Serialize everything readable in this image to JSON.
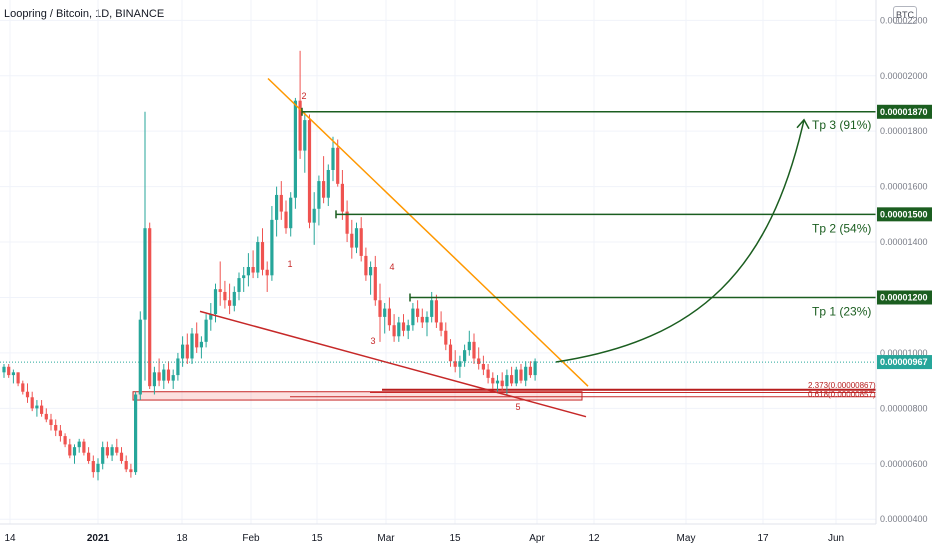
{
  "header": {
    "title": "Loopring / Bitcoin, 1D, BINANCE",
    "currency_button": "BTC"
  },
  "colors": {
    "up": "#26a69a",
    "down": "#ef5350",
    "target": "#1b5e20",
    "resistance": "#ff9800",
    "support": "#c62828",
    "grid": "#f0f3fa"
  },
  "chart_data": {
    "type": "candlestick",
    "x_labels": [
      "14",
      "2021",
      "18",
      "Feb",
      "15",
      "Mar",
      "15",
      "Apr",
      "12",
      "May",
      "17",
      "Jun"
    ],
    "y_ticks": [
      "0.00002200",
      "0.00002000",
      "0.00001800",
      "0.00001600",
      "0.00001400",
      "0.00001200",
      "0.00001000",
      "0.00000800",
      "0.00000600",
      "0.00000400"
    ],
    "y_tick_values": [
      2.2e-05,
      2e-05,
      1.8e-05,
      1.6e-05,
      1.4e-05,
      1.2e-05,
      1e-05,
      8e-06,
      6e-06,
      4e-06
    ],
    "ylim": [
      3.9e-06,
      2.23e-05
    ],
    "current_price": "0.00000967",
    "targets": [
      {
        "label": "Tp 3 (91%)",
        "price": "0.00001870",
        "value": 1.87e-05
      },
      {
        "label": "Tp 2 (54%)",
        "price": "0.00001500",
        "value": 1.5e-05
      },
      {
        "label": "Tp 1 (23%)",
        "price": "0.00001200",
        "value": 1.2e-05
      }
    ],
    "fib_labels": [
      "2.373(0.00000867)",
      "0.618(0.00000857)"
    ],
    "wave_labels": [
      "2",
      "1",
      "4",
      "3",
      "5"
    ],
    "candles": [
      [
        9.3e-06,
        9.6e-06,
        9.1e-06,
        9.5e-06
      ],
      [
        9.5e-06,
        9.6e-06,
        9.1e-06,
        9.2e-06
      ],
      [
        9.2e-06,
        9.4e-06,
        8.9e-06,
        9.3e-06
      ],
      [
        9.3e-06,
        9.3e-06,
        8.8e-06,
        8.9e-06
      ],
      [
        8.9e-06,
        9e-06,
        8.5e-06,
        8.6e-06
      ],
      [
        8.6e-06,
        8.9e-06,
        8.2e-06,
        8.4e-06
      ],
      [
        8.4e-06,
        8.6e-06,
        7.9e-06,
        8e-06
      ],
      [
        8e-06,
        8.3e-06,
        7.7e-06,
        8.1e-06
      ],
      [
        8.1e-06,
        8.3e-06,
        7.7e-06,
        7.8e-06
      ],
      [
        7.8e-06,
        8e-06,
        7.5e-06,
        7.6e-06
      ],
      [
        7.6e-06,
        7.8e-06,
        7.2e-06,
        7.4e-06
      ],
      [
        7.4e-06,
        7.6e-06,
        7e-06,
        7.2e-06
      ],
      [
        7.2e-06,
        7.4e-06,
        6.8e-06,
        7e-06
      ],
      [
        7e-06,
        7.1e-06,
        6.6e-06,
        6.7e-06
      ],
      [
        6.7e-06,
        6.9e-06,
        6.2e-06,
        6.3e-06
      ],
      [
        6.3e-06,
        6.7e-06,
        6e-06,
        6.6e-06
      ],
      [
        6.6e-06,
        6.9e-06,
        6.4e-06,
        6.8e-06
      ],
      [
        6.8e-06,
        6.9e-06,
        6.3e-06,
        6.4e-06
      ],
      [
        6.4e-06,
        6.6e-06,
        6e-06,
        6.1e-06
      ],
      [
        6.1e-06,
        6.3e-06,
        5.5e-06,
        5.7e-06
      ],
      [
        5.7e-06,
        6.2e-06,
        5.4e-06,
        6e-06
      ],
      [
        6e-06,
        6.8e-06,
        5.8e-06,
        6.6e-06
      ],
      [
        6.6e-06,
        6.8e-06,
        6.2e-06,
        6.3e-06
      ],
      [
        6.3e-06,
        6.7e-06,
        6.1e-06,
        6.6e-06
      ],
      [
        6.6e-06,
        6.9e-06,
        6.3e-06,
        6.4e-06
      ],
      [
        6.4e-06,
        6.6e-06,
        6e-06,
        6.1e-06
      ],
      [
        6.1e-06,
        6.3e-06,
        5.7e-06,
        5.8e-06
      ],
      [
        5.8e-06,
        6e-06,
        5.5e-06,
        5.7e-06
      ],
      [
        5.7e-06,
        8.6e-06,
        5.6e-06,
        8.5e-06
      ],
      [
        8.5e-06,
        1.15e-05,
        8.3e-06,
        1.12e-05
      ],
      [
        1.12e-05,
        1.87e-05,
        9e-06,
        1.45e-05
      ],
      [
        1.45e-05,
        1.47e-05,
        8.7e-06,
        8.8e-06
      ],
      [
        8.8e-06,
        9.5e-06,
        8.5e-06,
        9.3e-06
      ],
      [
        9.3e-06,
        9.8e-06,
        8.8e-06,
        9e-06
      ],
      [
        9e-06,
        9.6e-06,
        8.7e-06,
        9.4e-06
      ],
      [
        9.4e-06,
        9.7e-06,
        8.9e-06,
        9e-06
      ],
      [
        9e-06,
        9.4e-06,
        8.7e-06,
        9.2e-06
      ],
      [
        9.2e-06,
        1e-05,
        9e-06,
        9.8e-06
      ],
      [
        9.8e-06,
        1.06e-05,
        9.5e-06,
        1.03e-05
      ],
      [
        1.03e-05,
        1.07e-05,
        9.6e-06,
        9.8e-06
      ],
      [
        9.8e-06,
        1.09e-05,
        9.6e-06,
        1.07e-05
      ],
      [
        1.07e-05,
        1.11e-05,
        1e-05,
        1.02e-05
      ],
      [
        1.02e-05,
        1.06e-05,
        9.8e-06,
        1.04e-05
      ],
      [
        1.04e-05,
        1.14e-05,
        1.02e-05,
        1.12e-05
      ],
      [
        1.12e-05,
        1.18e-05,
        1.08e-05,
        1.14e-05
      ],
      [
        1.14e-05,
        1.25e-05,
        1.11e-05,
        1.23e-05
      ],
      [
        1.23e-05,
        1.33e-05,
        1.17e-05,
        1.22e-05
      ],
      [
        1.22e-05,
        1.26e-05,
        1.16e-05,
        1.19e-05
      ],
      [
        1.19e-05,
        1.25e-05,
        1.14e-05,
        1.17e-05
      ],
      [
        1.17e-05,
        1.24e-05,
        1.15e-05,
        1.22e-05
      ],
      [
        1.22e-05,
        1.29e-05,
        1.19e-05,
        1.27e-05
      ],
      [
        1.27e-05,
        1.31e-05,
        1.22e-05,
        1.28e-05
      ],
      [
        1.28e-05,
        1.36e-05,
        1.24e-05,
        1.31e-05
      ],
      [
        1.31e-05,
        1.37e-05,
        1.27e-05,
        1.29e-05
      ],
      [
        1.29e-05,
        1.42e-05,
        1.27e-05,
        1.4e-05
      ],
      [
        1.4e-05,
        1.45e-05,
        1.28e-05,
        1.3e-05
      ],
      [
        1.3e-05,
        1.33e-05,
        1.22e-05,
        1.28e-05
      ],
      [
        1.28e-05,
        1.53e-05,
        1.26e-05,
        1.48e-05
      ],
      [
        1.48e-05,
        1.6e-05,
        1.42e-05,
        1.57e-05
      ],
      [
        1.57e-05,
        1.62e-05,
        1.48e-05,
        1.51e-05
      ],
      [
        1.51e-05,
        1.55e-05,
        1.43e-05,
        1.45e-05
      ],
      [
        1.45e-05,
        1.58e-05,
        1.42e-05,
        1.56e-05
      ],
      [
        1.56e-05,
        1.92e-05,
        1.52e-05,
        1.91e-05
      ],
      [
        1.91e-05,
        2.09e-05,
        1.7e-05,
        1.73e-05
      ],
      [
        1.73e-05,
        1.87e-05,
        1.65e-05,
        1.84e-05
      ],
      [
        1.84e-05,
        1.86e-05,
        1.45e-05,
        1.47e-05
      ],
      [
        1.47e-05,
        1.58e-05,
        1.39e-05,
        1.52e-05
      ],
      [
        1.52e-05,
        1.64e-05,
        1.46e-05,
        1.62e-05
      ],
      [
        1.62e-05,
        1.71e-05,
        1.54e-05,
        1.56e-05
      ],
      [
        1.56e-05,
        1.68e-05,
        1.53e-05,
        1.66e-05
      ],
      [
        1.66e-05,
        1.78e-05,
        1.62e-05,
        1.74e-05
      ],
      [
        1.74e-05,
        1.77e-05,
        1.6e-05,
        1.61e-05
      ],
      [
        1.61e-05,
        1.66e-05,
        1.48e-05,
        1.51e-05
      ],
      [
        1.51e-05,
        1.55e-05,
        1.4e-05,
        1.43e-05
      ],
      [
        1.43e-05,
        1.48e-05,
        1.34e-05,
        1.38e-05
      ],
      [
        1.38e-05,
        1.47e-05,
        1.36e-05,
        1.45e-05
      ],
      [
        1.45e-05,
        1.49e-05,
        1.33e-05,
        1.35e-05
      ],
      [
        1.35e-05,
        1.38e-05,
        1.26e-05,
        1.28e-05
      ],
      [
        1.28e-05,
        1.33e-05,
        1.21e-05,
        1.31e-05
      ],
      [
        1.31e-05,
        1.35e-05,
        1.17e-05,
        1.19e-05
      ],
      [
        1.19e-05,
        1.25e-05,
        1.04e-05,
        1.13e-05
      ],
      [
        1.13e-05,
        1.18e-05,
        1.07e-05,
        1.16e-05
      ],
      [
        1.16e-05,
        1.2e-05,
        1.08e-05,
        1.1e-05
      ],
      [
        1.1e-05,
        1.14e-05,
        1.04e-05,
        1.06e-05
      ],
      [
        1.06e-05,
        1.13e-05,
        1.04e-05,
        1.11e-05
      ],
      [
        1.11e-05,
        1.14e-05,
        1.06e-05,
        1.08e-05
      ],
      [
        1.08e-05,
        1.12e-05,
        1.05e-05,
        1.1e-05
      ],
      [
        1.1e-05,
        1.18e-05,
        1.08e-05,
        1.16e-05
      ],
      [
        1.16e-05,
        1.19e-05,
        1.11e-05,
        1.13e-05
      ],
      [
        1.13e-05,
        1.16e-05,
        1.09e-05,
        1.11e-05
      ],
      [
        1.11e-05,
        1.15e-05,
        1.06e-05,
        1.13e-05
      ],
      [
        1.13e-05,
        1.22e-05,
        1.11e-05,
        1.19e-05
      ],
      [
        1.19e-05,
        1.21e-05,
        1.09e-05,
        1.11e-05
      ],
      [
        1.11e-05,
        1.15e-05,
        1.06e-05,
        1.08e-05
      ],
      [
        1.08e-05,
        1.11e-05,
        1.01e-05,
        1.03e-05
      ],
      [
        1.03e-05,
        1.05e-05,
        9.5e-06,
        9.7e-06
      ],
      [
        9.7e-06,
        1.01e-05,
        9.3e-06,
        9.5e-06
      ],
      [
        9.5e-06,
        9.9e-06,
        9.1e-06,
        9.7e-06
      ],
      [
        9.7e-06,
        1.03e-05,
        9.5e-06,
        1.01e-05
      ],
      [
        1.01e-05,
        1.08e-05,
        9.9e-06,
        1.04e-05
      ],
      [
        1.04e-05,
        1.07e-05,
        9.6e-06,
        9.8e-06
      ],
      [
        9.8e-06,
        1.02e-05,
        9.4e-06,
        9.6e-06
      ],
      [
        9.6e-06,
        9.9e-06,
        9.2e-06,
        9.4e-06
      ],
      [
        9.4e-06,
        9.6e-06,
        8.9e-06,
        9.1e-06
      ],
      [
        9.1e-06,
        9.3e-06,
        8.7e-06,
        8.9e-06
      ],
      [
        8.9e-06,
        9.2e-06,
        8.6e-06,
        9e-06
      ],
      [
        9e-06,
        9.3e-06,
        8.6e-06,
        8.8e-06
      ],
      [
        8.8e-06,
        9.4e-06,
        8.5e-06,
        9.2e-06
      ],
      [
        9.2e-06,
        9.5e-06,
        8.8e-06,
        8.9e-06
      ],
      [
        8.9e-06,
        9.5e-06,
        8.8e-06,
        9.4e-06
      ],
      [
        9.4e-06,
        9.6e-06,
        8.9e-06,
        9e-06
      ],
      [
        9e-06,
        9.7e-06,
        8.8e-06,
        9.5e-06
      ],
      [
        9.5e-06,
        9.7e-06,
        9.1e-06,
        9.2e-06
      ],
      [
        9.2e-06,
        9.8e-06,
        9e-06,
        9.7e-06
      ]
    ]
  }
}
